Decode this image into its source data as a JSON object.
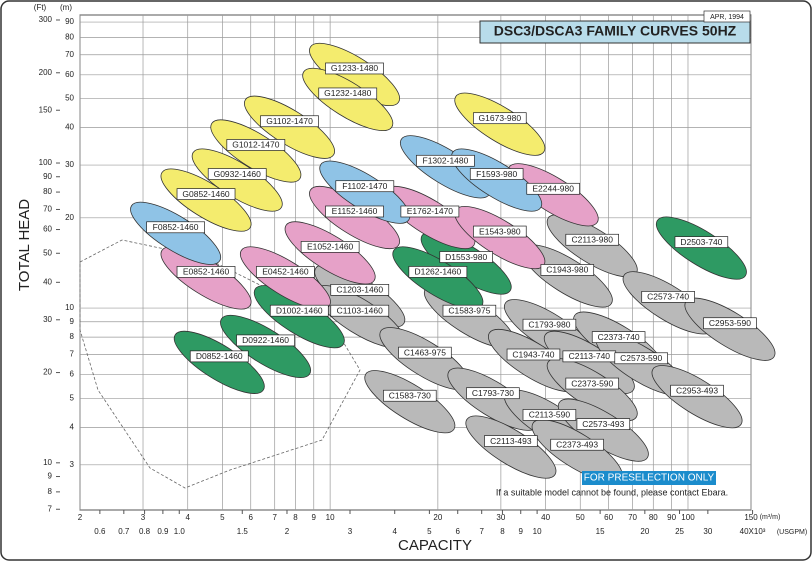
{
  "chart_data": {
    "type": "region",
    "title": "DSC3/DSCA3 FAMILY CURVES 50HZ",
    "date": "APR, 1994",
    "y_label": "TOTAL HEAD",
    "x_label": "CAPACITY",
    "y_unit": "(m)",
    "y2_unit": "(Ft)",
    "x_unit": "(m³/m)",
    "x2_unit": "(USGPM)",
    "banner": "FOR PRESELECTION ONLY",
    "note": "If a suitable model cannot be found, please contact Ebara.",
    "log_x": true,
    "log_y": true,
    "grid": true,
    "xlim": [
      2,
      150
    ],
    "xticks": [
      2,
      3,
      4,
      5,
      6,
      7,
      8,
      9,
      10,
      20,
      30,
      40,
      50,
      60,
      70,
      80,
      90,
      100,
      150
    ],
    "x2lim": [
      0.528,
      39.6
    ],
    "x2ticks": [
      0.6,
      0.7,
      0.8,
      0.9,
      {
        "value": 1,
        "label": "1.0"
      },
      1.5,
      2,
      3,
      4,
      5,
      6,
      7,
      8,
      9,
      10,
      15,
      20,
      25,
      30,
      {
        "value": 40,
        "label": "40X10³"
      }
    ],
    "ylim": [
      2.12,
      95
    ],
    "yticks": [
      3,
      4,
      5,
      6,
      7,
      8,
      9,
      10,
      20,
      30,
      40,
      50,
      60,
      70,
      80,
      90
    ],
    "y2lim": [
      6.96,
      311.7
    ],
    "y2ticks": [
      7,
      8,
      9,
      10,
      20,
      30,
      40,
      50,
      60,
      70,
      80,
      90,
      100,
      150,
      200,
      300
    ],
    "families": [
      {
        "color": "#b9b9b9",
        "models": [
          {
            "label": "C2113-980",
            "x": 54,
            "y": 16.9
          },
          {
            "label": "C1943-980",
            "x": 46,
            "y": 13.4
          },
          {
            "label": "C1203-1460",
            "x": 12.1,
            "y": 11.5
          },
          {
            "label": "C1103-1460",
            "x": 12.1,
            "y": 9.8
          },
          {
            "label": "C1583-975",
            "x": 24.5,
            "y": 9.8
          },
          {
            "label": "C1793-980",
            "x": 41,
            "y": 8.8
          },
          {
            "label": "C2573-740",
            "x": 88,
            "y": 10.9
          },
          {
            "label": "C2953-590",
            "x": 131,
            "y": 8.9
          },
          {
            "label": "C2373-740",
            "x": 64,
            "y": 8.0
          },
          {
            "label": "C1463-975",
            "x": 18.4,
            "y": 7.1
          },
          {
            "label": "C1943-740",
            "x": 37,
            "y": 7.0
          },
          {
            "label": "C2113-740",
            "x": 53,
            "y": 6.9
          },
          {
            "label": "C2573-590",
            "x": 74,
            "y": 6.8
          },
          {
            "label": "C2373-590",
            "x": 54,
            "y": 5.6
          },
          {
            "label": "C1583-730",
            "x": 16.7,
            "y": 5.1
          },
          {
            "label": "C1793-730",
            "x": 28.5,
            "y": 5.2
          },
          {
            "label": "C2953-493",
            "x": 106,
            "y": 5.3
          },
          {
            "label": "C2113-590",
            "x": 41,
            "y": 4.4
          },
          {
            "label": "C2573-493",
            "x": 58,
            "y": 4.1
          },
          {
            "label": "C2373-493",
            "x": 49,
            "y": 3.5
          },
          {
            "label": "C2113-493",
            "x": 32,
            "y": 3.6
          }
        ]
      },
      {
        "color": "#2e9a63",
        "models": [
          {
            "label": "D2503-740",
            "x": 109,
            "y": 16.6
          },
          {
            "label": "D1553-980",
            "x": 24,
            "y": 14.8
          },
          {
            "label": "D1262-1460",
            "x": 20,
            "y": 13.2
          },
          {
            "label": "D1002-1460",
            "x": 8.2,
            "y": 9.8
          },
          {
            "label": "D0922-1460",
            "x": 6.6,
            "y": 7.8
          },
          {
            "label": "D0852-1460",
            "x": 4.9,
            "y": 6.9
          }
        ]
      },
      {
        "color": "#e6a1c8",
        "models": [
          {
            "label": "E2244-980",
            "x": 42,
            "y": 25
          },
          {
            "label": "E1152-1460",
            "x": 11.7,
            "y": 21
          },
          {
            "label": "E1762-1470",
            "x": 19,
            "y": 21
          },
          {
            "label": "E1052-1460",
            "x": 10,
            "y": 16
          },
          {
            "label": "E1543-980",
            "x": 29.8,
            "y": 18
          },
          {
            "label": "E0852-1460",
            "x": 4.5,
            "y": 13.2
          },
          {
            "label": "E0452-1460",
            "x": 7.5,
            "y": 13.2
          }
        ]
      },
      {
        "color": "#8fc3e6",
        "models": [
          {
            "label": "F1302-1480",
            "x": 21,
            "y": 31
          },
          {
            "label": "F1102-1470",
            "x": 12.5,
            "y": 25.5
          },
          {
            "label": "F1593-980",
            "x": 29.2,
            "y": 28
          },
          {
            "label": "F0852-1460",
            "x": 3.7,
            "y": 18.6
          }
        ]
      },
      {
        "color": "#f4ec6e",
        "models": [
          {
            "label": "G1233-1480",
            "x": 11.7,
            "y": 63
          },
          {
            "label": "G1232-1480",
            "x": 11.2,
            "y": 52
          },
          {
            "label": "G1102-1470",
            "x": 7.7,
            "y": 42
          },
          {
            "label": "G1012-1470",
            "x": 6.2,
            "y": 35
          },
          {
            "label": "G0932-1460",
            "x": 5.5,
            "y": 28
          },
          {
            "label": "G0852-1460",
            "x": 4.5,
            "y": 24
          },
          {
            "label": "G1673-980",
            "x": 29.8,
            "y": 43
          }
        ]
      }
    ]
  }
}
